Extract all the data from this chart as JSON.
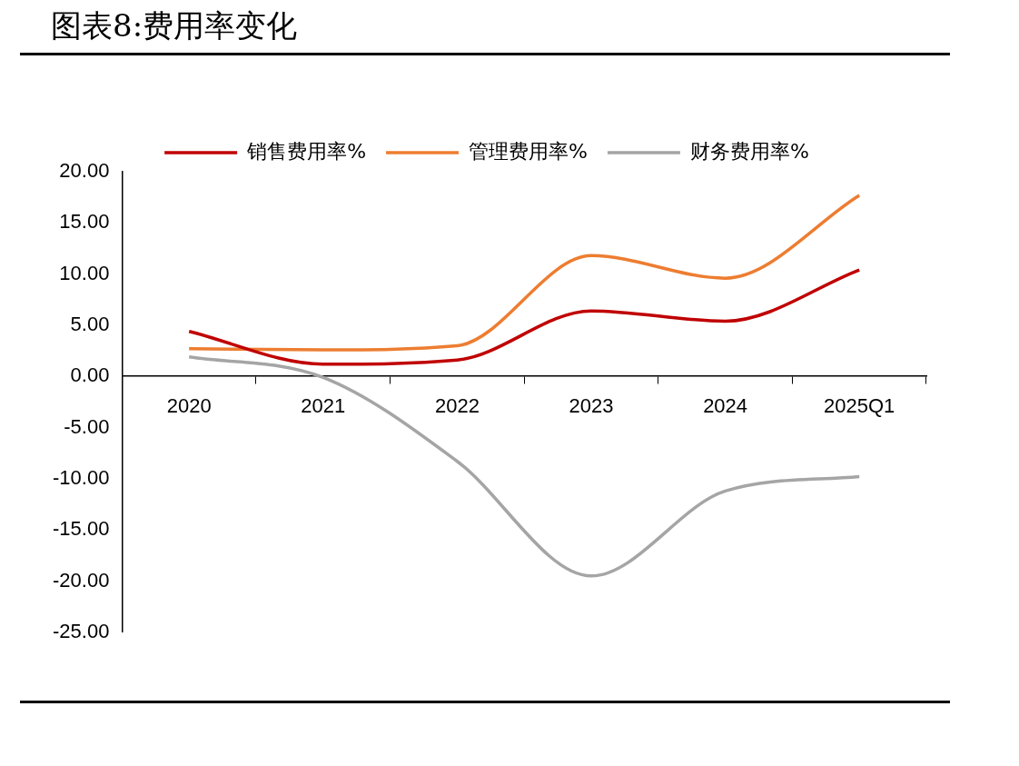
{
  "chart_data": {
    "type": "line",
    "title": "图表8:费用率变化",
    "categories": [
      "2020",
      "2021",
      "2022",
      "2023",
      "2024",
      "2025Q1"
    ],
    "series": [
      {
        "name": "销售费用率%",
        "color": "#c00000",
        "values": [
          4.4,
          1.2,
          1.6,
          6.4,
          5.4,
          10.4
        ]
      },
      {
        "name": "管理费用率%",
        "color": "#ed7d31",
        "values": [
          2.7,
          2.6,
          3.0,
          11.8,
          9.6,
          17.7
        ]
      },
      {
        "name": "财务费用率%",
        "color": "#a5a5a5",
        "values": [
          1.9,
          -0.1,
          -8.3,
          -19.5,
          -11.2,
          -9.8
        ]
      }
    ],
    "ylim": [
      -25,
      20
    ],
    "yticks": [
      {
        "value": -25,
        "label": "-25.00"
      },
      {
        "value": -20,
        "label": "-20.00"
      },
      {
        "value": -15,
        "label": "-15.00"
      },
      {
        "value": -10,
        "label": "-10.00"
      },
      {
        "value": -5,
        "label": "-5.00"
      },
      {
        "value": 0,
        "label": "0.00"
      },
      {
        "value": 5,
        "label": "5.00"
      },
      {
        "value": 10,
        "label": "10.00"
      },
      {
        "value": 15,
        "label": "15.00"
      },
      {
        "value": 20,
        "label": "20.00"
      }
    ],
    "legend": "top",
    "marker": "none",
    "line_style": "solid"
  }
}
